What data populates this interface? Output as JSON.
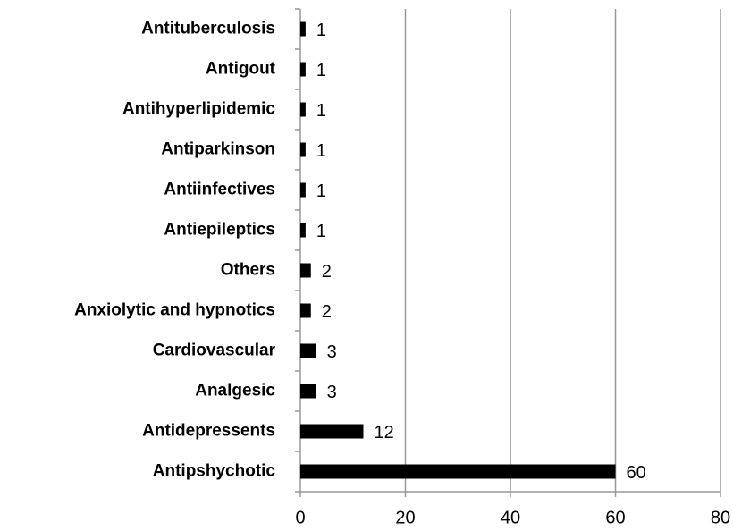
{
  "chart_data": {
    "type": "bar",
    "orientation": "horizontal",
    "categories": [
      "Antituberculosis",
      "Antigout",
      "Antihyperlipidemic",
      "Antiparkinson",
      "Antiinfectives",
      "Antiepileptics",
      "Others",
      "Anxiolytic and hypnotics",
      "Cardiovascular",
      "Analgesic",
      "Antidepressents",
      "Antipshychotic"
    ],
    "values": [
      1,
      1,
      1,
      1,
      1,
      1,
      2,
      2,
      3,
      3,
      12,
      60
    ],
    "color": "#000000",
    "xlim": [
      0,
      80
    ],
    "xticks": [
      0,
      20,
      40,
      60,
      80
    ],
    "grid": true,
    "data_labels": true
  }
}
